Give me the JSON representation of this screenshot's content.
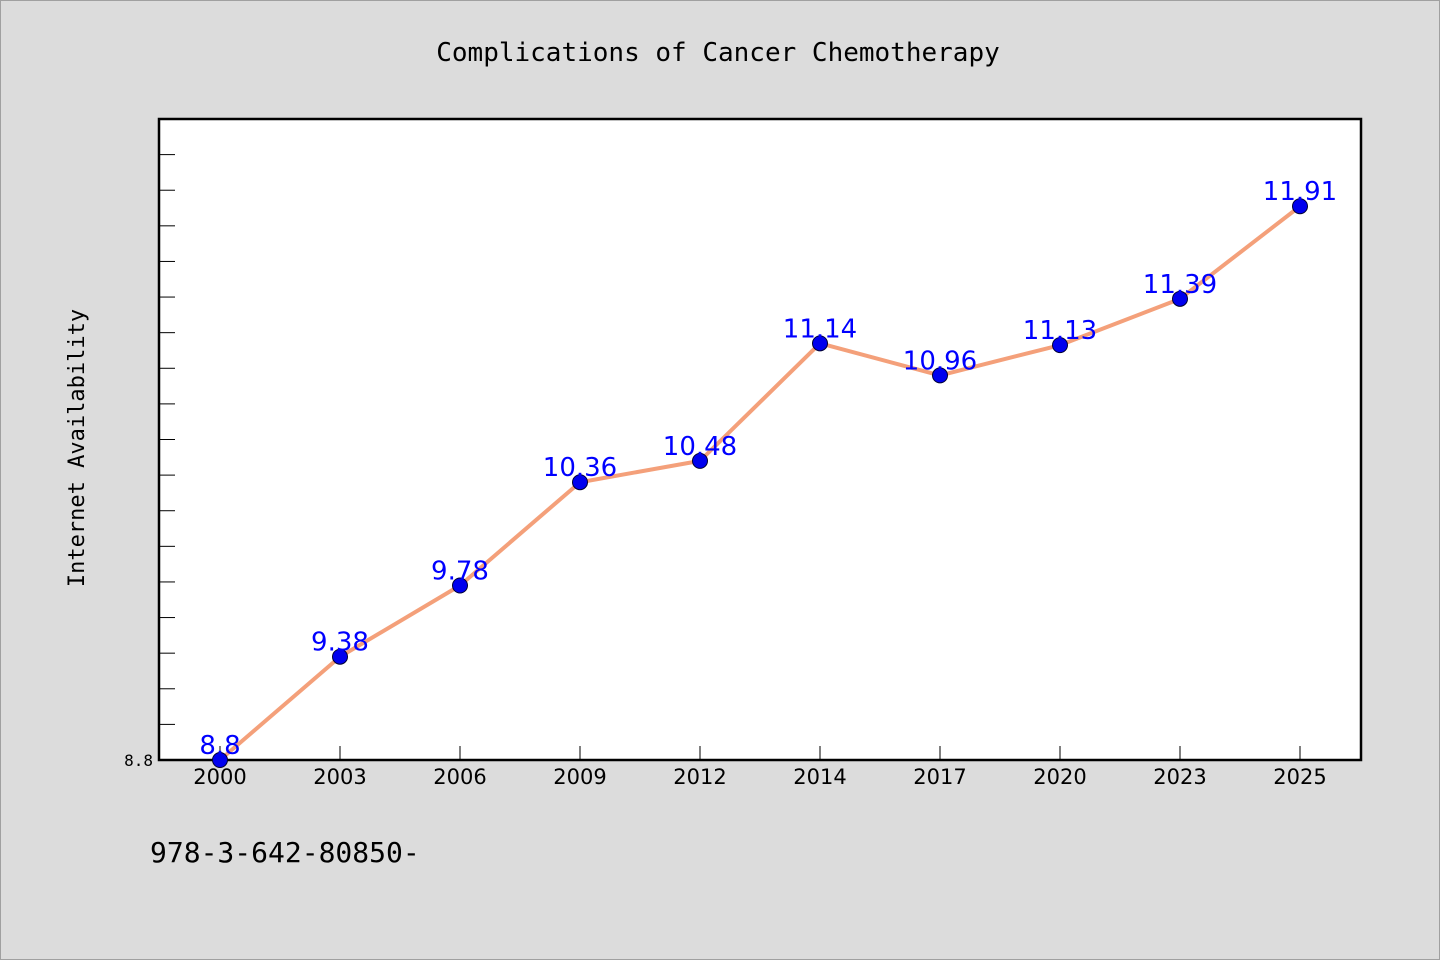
{
  "chart_data": {
    "type": "line",
    "title": "Complications of Cancer Chemotherapy",
    "xlabel": "",
    "ylabel": "Internet Availability",
    "categories": [
      "2000",
      "2003",
      "2006",
      "2009",
      "2012",
      "2014",
      "2017",
      "2020",
      "2023",
      "2025"
    ],
    "series": [
      {
        "values": [
          8.8,
          9.38,
          9.78,
          10.36,
          10.48,
          11.14,
          10.96,
          11.13,
          11.39,
          11.91
        ],
        "labels": [
          "8.8",
          "9.38",
          "9.78",
          "10.36",
          "10.48",
          "11.14",
          "10.96",
          "11.13",
          "11.39",
          "11.91"
        ],
        "line_color": "#f4a07a",
        "marker_color": "#0000ee",
        "label_color": "#0000ff"
      }
    ],
    "y_tick_labels": [
      "8.8"
    ],
    "ylim": [
      8.8,
      12.4
    ],
    "grid": false,
    "legend": "none"
  },
  "footer": {
    "text": "978-3-642-80850-"
  }
}
